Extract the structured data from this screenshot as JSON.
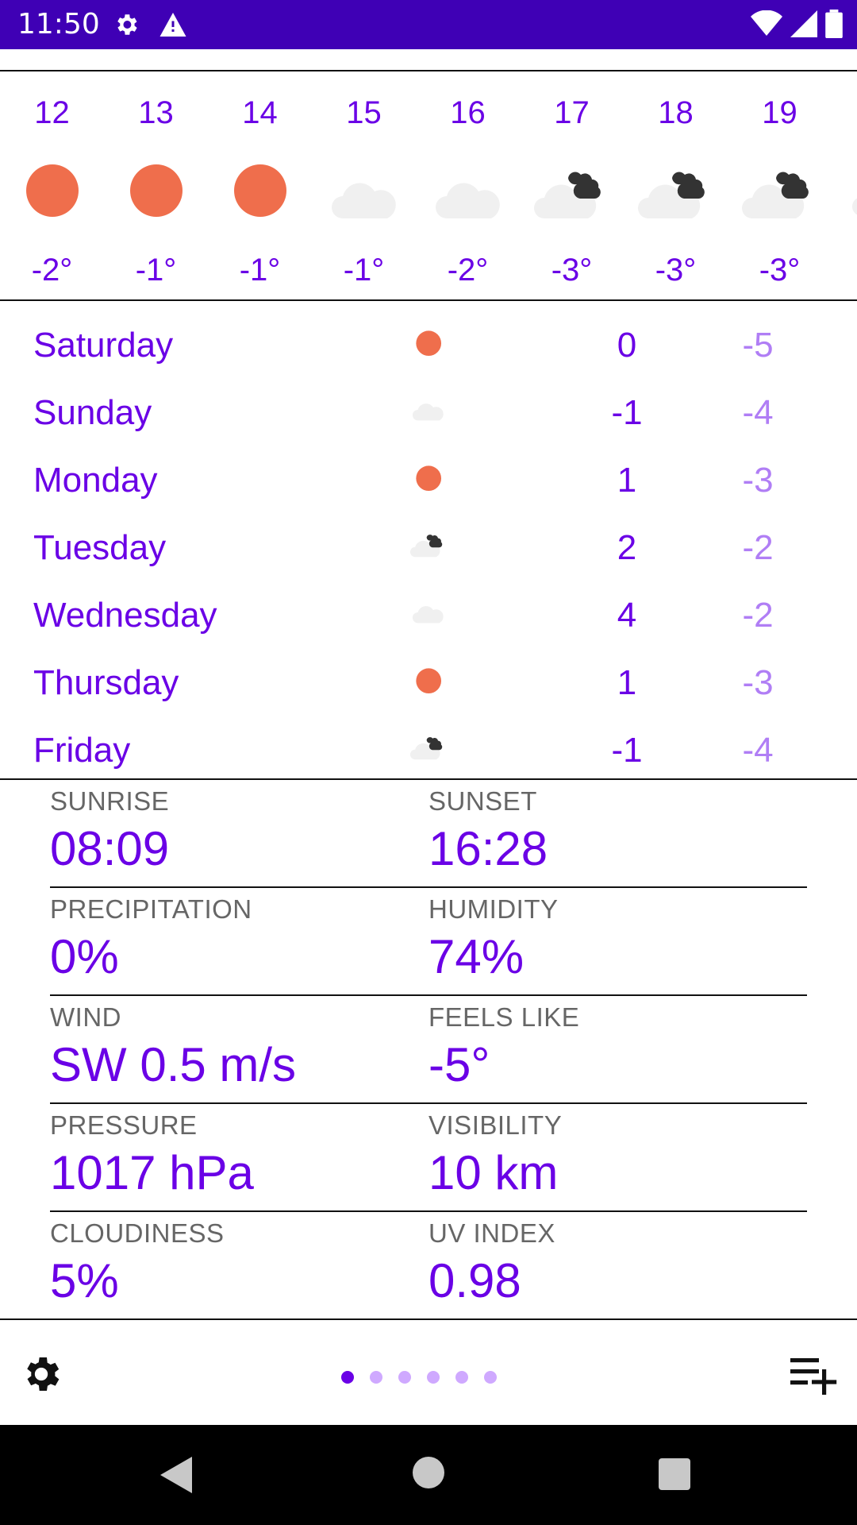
{
  "status_bar": {
    "time": "11:50"
  },
  "hourly": [
    {
      "hour": "12",
      "icon": "sun-icon",
      "temp": "-2°"
    },
    {
      "hour": "13",
      "icon": "sun-icon",
      "temp": "-1°"
    },
    {
      "hour": "14",
      "icon": "sun-icon",
      "temp": "-1°"
    },
    {
      "hour": "15",
      "icon": "cloud-icon",
      "temp": "-1°"
    },
    {
      "hour": "16",
      "icon": "cloud-icon",
      "temp": "-2°"
    },
    {
      "hour": "17",
      "icon": "cloud-dark-icon",
      "temp": "-3°"
    },
    {
      "hour": "18",
      "icon": "cloud-dark-icon",
      "temp": "-3°"
    },
    {
      "hour": "19",
      "icon": "cloud-dark-icon",
      "temp": "-3°"
    }
  ],
  "daily": [
    {
      "day": "Saturday",
      "icon": "sun-icon",
      "high": "0",
      "low": "-5"
    },
    {
      "day": "Sunday",
      "icon": "cloud-icon",
      "high": "-1",
      "low": "-4"
    },
    {
      "day": "Monday",
      "icon": "sun-icon",
      "high": "1",
      "low": "-3"
    },
    {
      "day": "Tuesday",
      "icon": "cloud-dark-icon",
      "high": "2",
      "low": "-2"
    },
    {
      "day": "Wednesday",
      "icon": "cloud-icon",
      "high": "4",
      "low": "-2"
    },
    {
      "day": "Thursday",
      "icon": "sun-icon",
      "high": "1",
      "low": "-3"
    },
    {
      "day": "Friday",
      "icon": "cloud-dark-icon",
      "high": "-1",
      "low": "-4"
    }
  ],
  "details": [
    {
      "label": "SUNRISE",
      "value": "08:09"
    },
    {
      "label": "SUNSET",
      "value": "16:28"
    },
    {
      "label": "PRECIPITATION",
      "value": "0%"
    },
    {
      "label": "HUMIDITY",
      "value": "74%"
    },
    {
      "label": "WIND",
      "value": "SW 0.5 m/s"
    },
    {
      "label": "FEELS LIKE",
      "value": "-5°"
    },
    {
      "label": "PRESSURE",
      "value": "1017 hPa"
    },
    {
      "label": "VISIBILITY",
      "value": "10 km"
    },
    {
      "label": "CLOUDINESS",
      "value": "5%"
    },
    {
      "label": "UV INDEX",
      "value": "0.98"
    }
  ],
  "pager": {
    "count": 6,
    "active": 0
  },
  "colors": {
    "accent": "#6a00e6",
    "low": "#b07ef5",
    "status": "#3f00b5",
    "sun": "#ef6e4c"
  }
}
